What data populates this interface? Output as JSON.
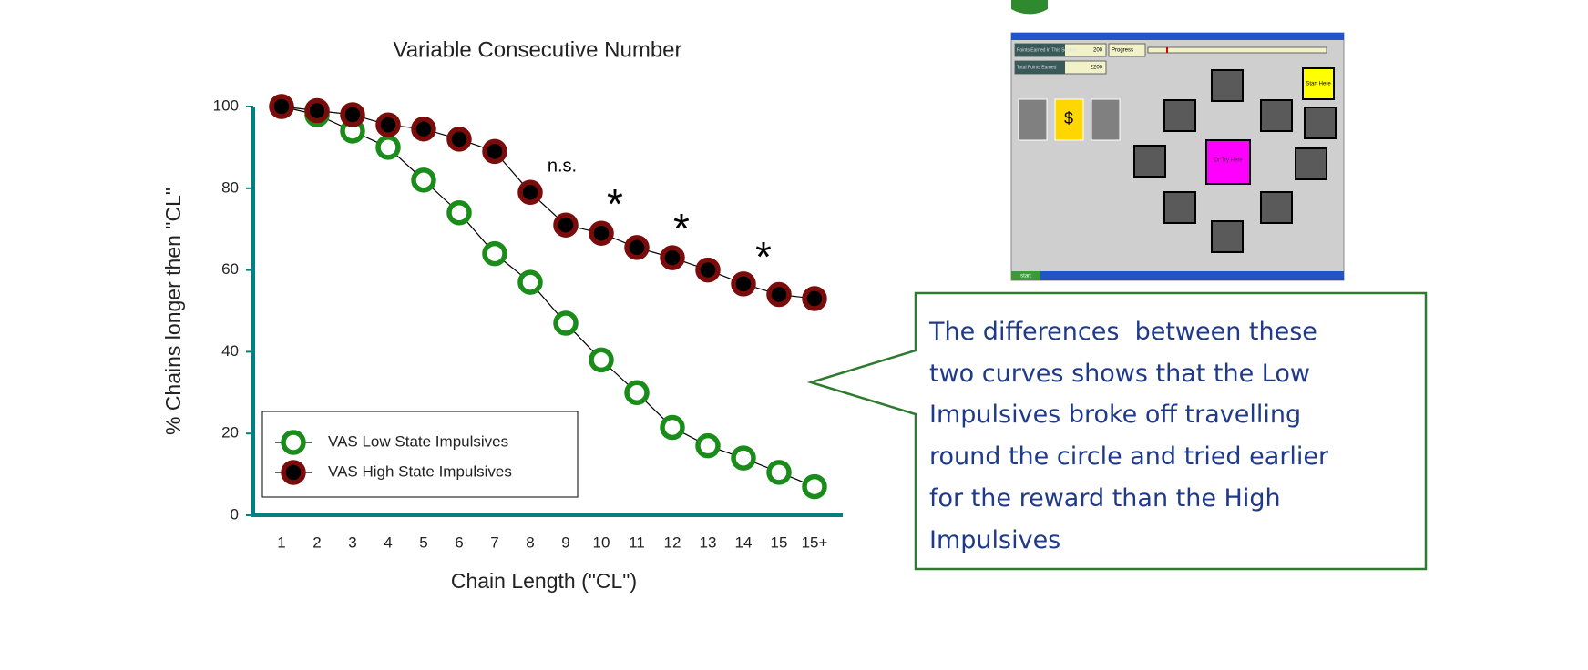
{
  "chart_data": {
    "type": "line",
    "title": "Variable Consecutive Number",
    "x_label": "Chain Length (\"CL\")",
    "y_label": "% Chains longer then \"CL\"",
    "categories": [
      "1",
      "2",
      "3",
      "4",
      "5",
      "6",
      "7",
      "8",
      "9",
      "10",
      "11",
      "12",
      "13",
      "14",
      "15",
      "15+"
    ],
    "series": [
      {
        "name": "VAS Low State Impulsives",
        "color": "#1a8c1a",
        "marker_fill": "#ffffff",
        "values": [
          100,
          98,
          94,
          90,
          82,
          74,
          64,
          57,
          47,
          38,
          30,
          21.5,
          17,
          14,
          10.5,
          7
        ]
      },
      {
        "name": "VAS High State Impulsives",
        "color": "#7a0c0c",
        "marker_fill": "#000000",
        "values": [
          100,
          99,
          98,
          95.5,
          94.5,
          92,
          89,
          79,
          71,
          69,
          65.5,
          63,
          60,
          56.6,
          54,
          53
        ]
      }
    ],
    "ylim": [
      0,
      100
    ],
    "yticks": [
      0,
      20,
      40,
      60,
      80,
      100
    ],
    "axis_color": "#008080",
    "annotations": [
      "n.s.",
      "*",
      "*",
      "*"
    ],
    "legend": "lower left"
  },
  "callout": {
    "lines": [
      "The differences  between these",
      "two curves shows that the Low",
      "Impulsives broke off travelling",
      "round the circle and tried earlier",
      "for the reward than the High",
      "Impulsives"
    ]
  },
  "inset": {
    "points_label": "Points Earned In This Section",
    "points": "200",
    "progress": "Progress",
    "total_label": "Total Points Earned",
    "total": "2200",
    "start": "Start Here",
    "dollar": "$",
    "try": "Or Try Here",
    "taskbar_start": "start"
  }
}
